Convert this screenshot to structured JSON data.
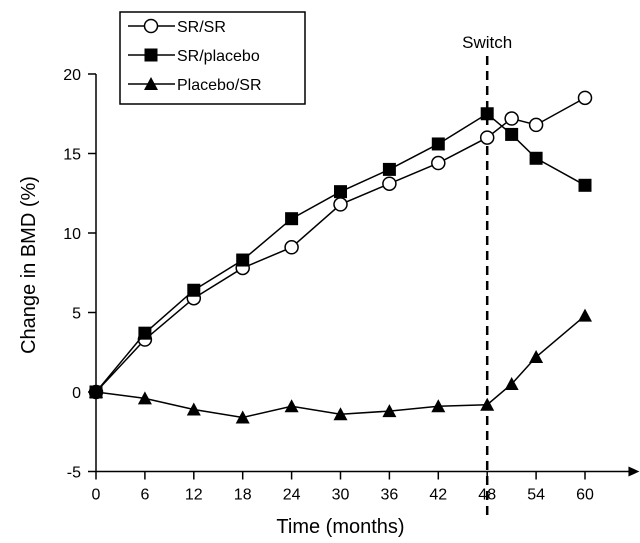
{
  "chart_data": {
    "type": "line",
    "xlabel": "Time (months)",
    "ylabel": "Change in BMD (%)",
    "xlim": [
      0,
      63
    ],
    "ylim": [
      -5,
      20
    ],
    "x_ticks": [
      "0",
      "6",
      "12",
      "18",
      "24",
      "30",
      "36",
      "42",
      "48",
      "54",
      "60"
    ],
    "y_ticks": [
      "-5",
      "0",
      "5",
      "10",
      "15",
      "20"
    ],
    "grid": false,
    "legend_position": "top-left",
    "annotation": {
      "label": "Switch",
      "x": 48
    },
    "series": [
      {
        "name": "SR/SR",
        "marker": "open-circle",
        "points": [
          [
            0,
            0
          ],
          [
            6,
            3.3
          ],
          [
            12,
            5.9
          ],
          [
            18,
            7.8
          ],
          [
            24,
            9.1
          ],
          [
            30,
            11.8
          ],
          [
            36,
            13.1
          ],
          [
            42,
            14.4
          ],
          [
            48,
            16.0
          ],
          [
            51,
            17.2
          ],
          [
            54,
            16.8
          ],
          [
            60,
            18.5
          ]
        ]
      },
      {
        "name": "SR/placebo",
        "marker": "filled-square",
        "points": [
          [
            0,
            0
          ],
          [
            6,
            3.7
          ],
          [
            12,
            6.4
          ],
          [
            18,
            8.3
          ],
          [
            24,
            10.9
          ],
          [
            30,
            12.6
          ],
          [
            36,
            14.0
          ],
          [
            42,
            15.6
          ],
          [
            48,
            17.5
          ],
          [
            51,
            16.2
          ],
          [
            54,
            14.7
          ],
          [
            60,
            13.0
          ]
        ]
      },
      {
        "name": "Placebo/SR",
        "marker": "filled-triangle",
        "points": [
          [
            0,
            0
          ],
          [
            6,
            -0.4
          ],
          [
            12,
            -1.1
          ],
          [
            18,
            -1.6
          ],
          [
            24,
            -0.9
          ],
          [
            30,
            -1.4
          ],
          [
            36,
            -1.2
          ],
          [
            42,
            -0.9
          ],
          [
            48,
            -0.8
          ],
          [
            51,
            0.5
          ],
          [
            54,
            2.2
          ],
          [
            60,
            4.8
          ]
        ]
      }
    ]
  }
}
